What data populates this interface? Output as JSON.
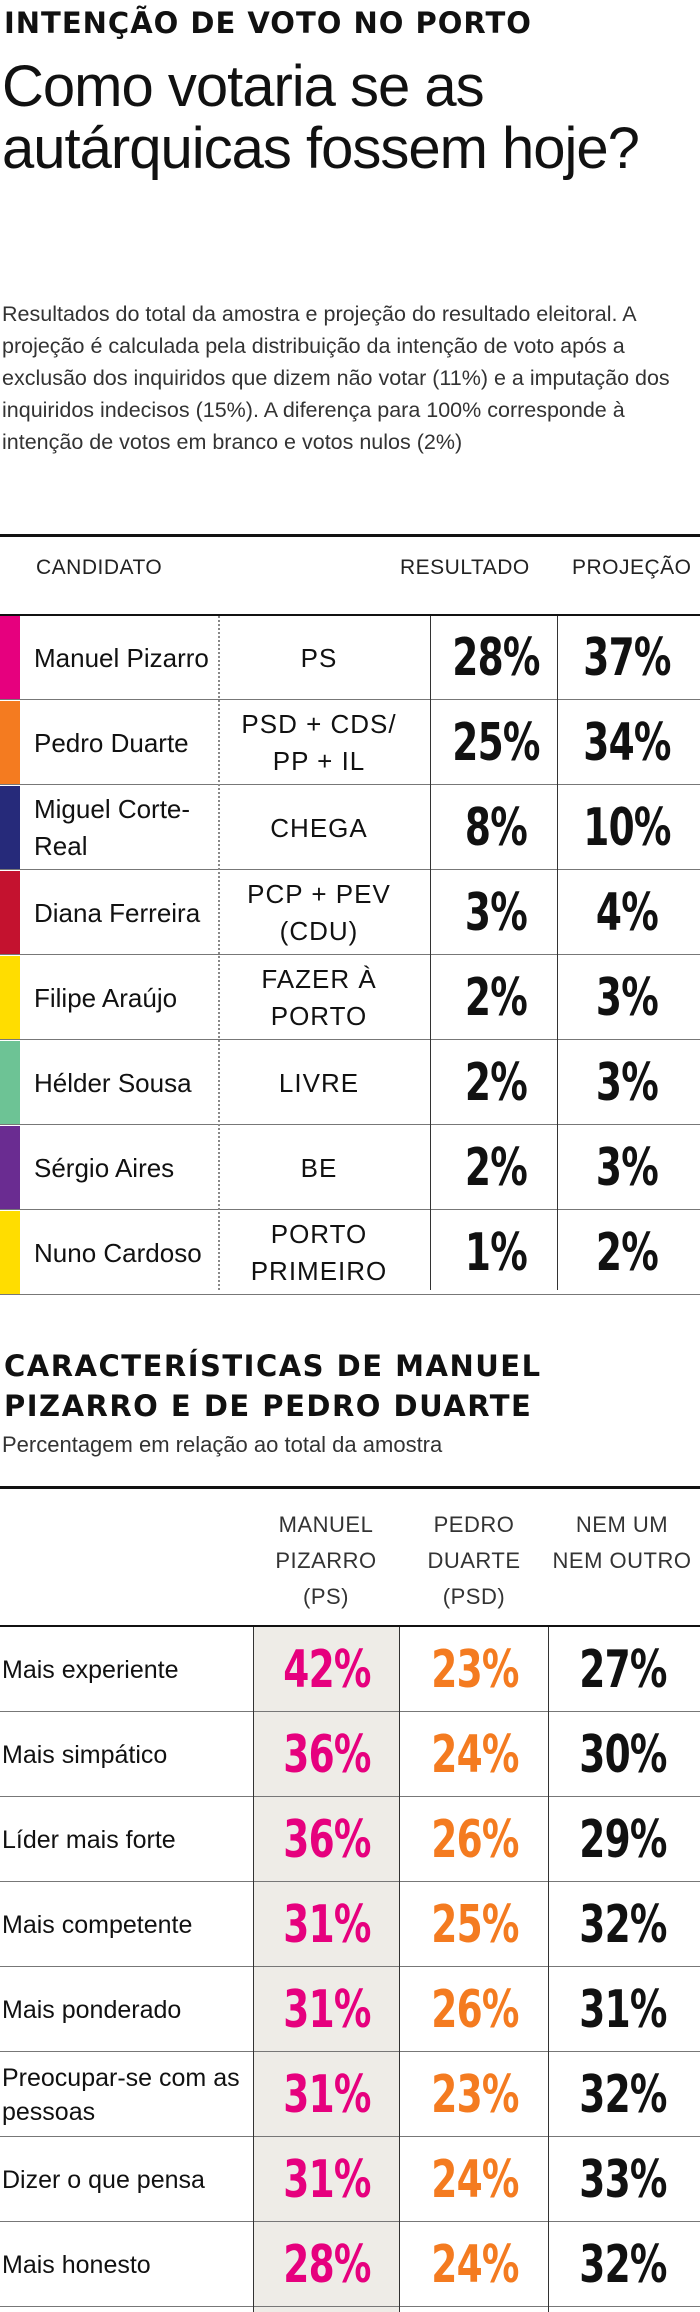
{
  "header": {
    "kicker": "INTENÇÃO DE VOTO NO PORTO",
    "headline": "Como votaria se as autárquicas fossem hoje?",
    "intro": "Resultados do total da amostra e projeção do resultado eleitoral. A projeção é calculada pela distribuição da intenção de voto após a exclusão dos inquiridos que dizem não votar (11%) e a imputação dos inquiridos indecisos (15%). A diferença para 100% corresponde à intenção de votos em branco e votos nulos (2%)"
  },
  "table1": {
    "col_candidate": "CANDIDATO",
    "col_result": "RESULTADO",
    "col_projection": "PROJEÇÃO",
    "rows": [
      {
        "name": "Manuel Pizarro",
        "party": "PS",
        "result": "28%",
        "projection": "37%",
        "color": "#e6007e"
      },
      {
        "name": "Pedro Duarte",
        "party": "PSD + CDS/ PP + IL",
        "result": "25%",
        "projection": "34%",
        "color": "#f47b20"
      },
      {
        "name": "Miguel Corte-Real",
        "party": "CHEGA",
        "result": "8%",
        "projection": "10%",
        "color": "#262a7a"
      },
      {
        "name": "Diana Ferreira",
        "party": "PCP + PEV (CDU)",
        "result": "3%",
        "projection": "4%",
        "color": "#c4122f"
      },
      {
        "name": "Filipe Araújo",
        "party": "FAZER À PORTO",
        "result": "2%",
        "projection": "3%",
        "color": "#ffdd00"
      },
      {
        "name": "Hélder Sousa",
        "party": "LIVRE",
        "result": "2%",
        "projection": "3%",
        "color": "#6dc395"
      },
      {
        "name": "Sérgio Aires",
        "party": "BE",
        "result": "2%",
        "projection": "3%",
        "color": "#6a2c91"
      },
      {
        "name": "Nuno Cardoso",
        "party": "PORTO PRIMEIRO",
        "result": "1%",
        "projection": "2%",
        "color": "#ffdd00"
      }
    ]
  },
  "section2": {
    "title": "CARACTERÍSTICAS DE MANUEL PIZARRO E DE PEDRO DUARTE",
    "subtitle": "Percentagem em relação ao total da amostra",
    "col_pizarro": "MANUEL PIZARRO (PS)",
    "col_duarte": "PEDRO DUARTE (PSD)",
    "col_neither": "NEM UM NEM OUTRO",
    "color_pizarro": "#e6007e",
    "color_duarte": "#f47b20",
    "rows": [
      {
        "trait": "Mais experiente",
        "pizarro": "42%",
        "duarte": "23%",
        "neither": "27%"
      },
      {
        "trait": "Mais simpático",
        "pizarro": "36%",
        "duarte": "24%",
        "neither": "30%"
      },
      {
        "trait": "Líder mais forte",
        "pizarro": "36%",
        "duarte": "26%",
        "neither": "29%"
      },
      {
        "trait": "Mais competente",
        "pizarro": "31%",
        "duarte": "25%",
        "neither": "32%"
      },
      {
        "trait": "Mais ponderado",
        "pizarro": "31%",
        "duarte": "26%",
        "neither": "31%"
      },
      {
        "trait": "Preocupar-se com as pessoas",
        "pizarro": "31%",
        "duarte": "23%",
        "neither": "32%"
      },
      {
        "trait": "Dizer o que pensa",
        "pizarro": "31%",
        "duarte": "24%",
        "neither": "33%"
      },
      {
        "trait": "Mais honesto",
        "pizarro": "28%",
        "duarte": "24%",
        "neither": "32%"
      }
    ]
  }
}
